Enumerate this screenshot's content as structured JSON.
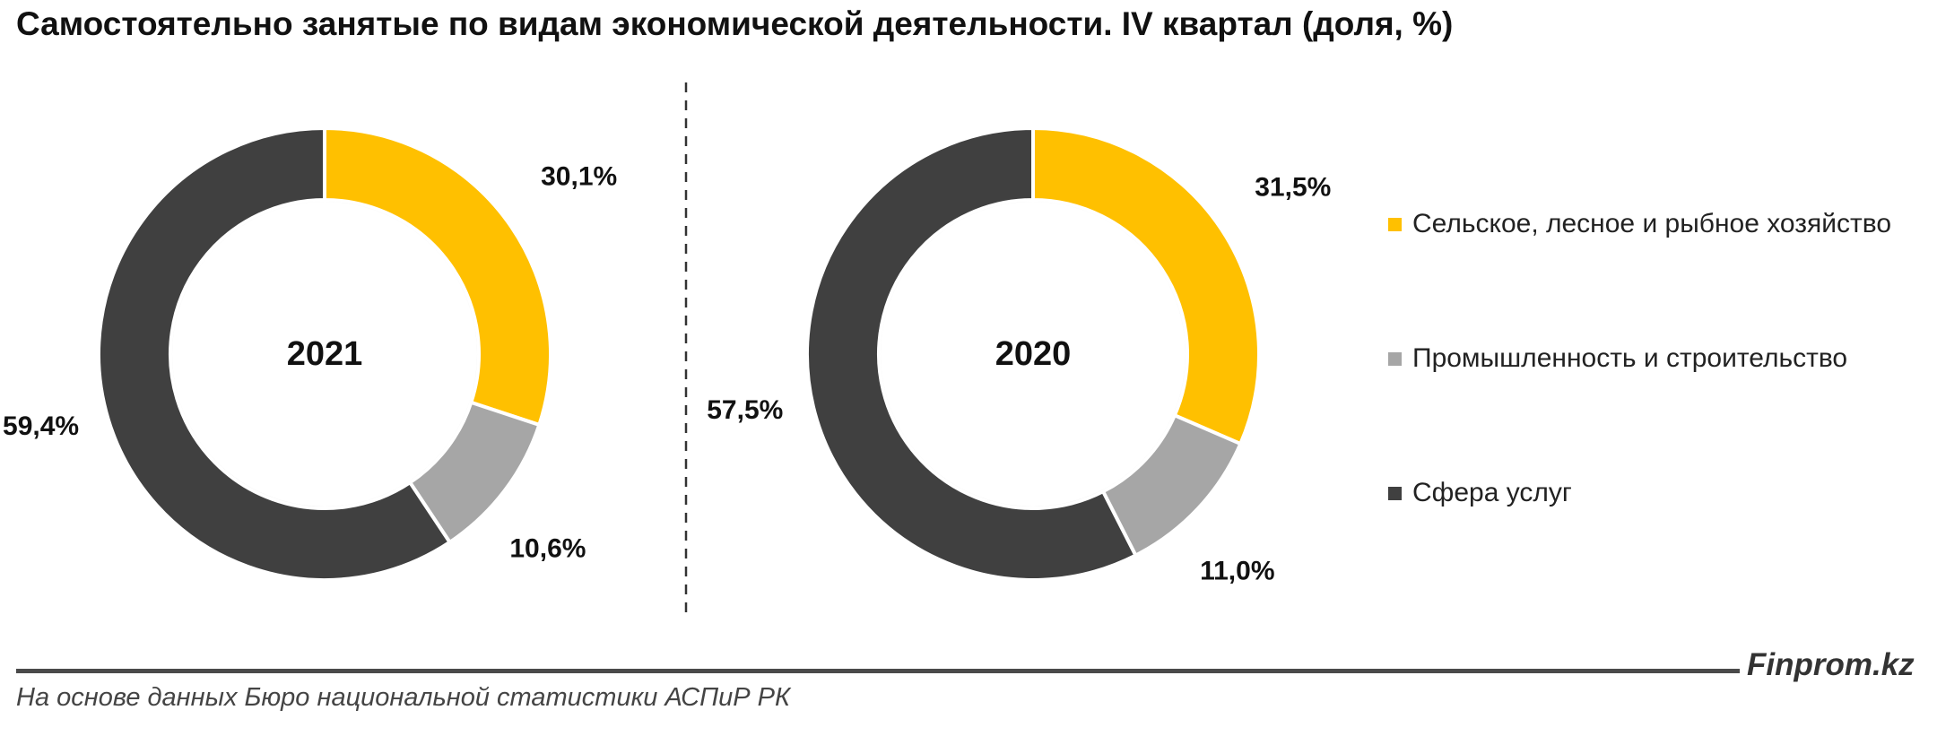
{
  "title": "Самостоятельно занятые по видам экономической деятельности. IV квартал (доля, %)",
  "chart_data": [
    {
      "type": "pie",
      "center_label": "2021",
      "categories": [
        "Сельское, лесное и рыбное хозяйство",
        "Промышленность и строительство",
        "Сфера услуг"
      ],
      "values": [
        30.1,
        10.6,
        59.4
      ],
      "labels": [
        "30,1%",
        "10,6%",
        "59,4%"
      ],
      "colors": [
        "#FFC000",
        "#A6A6A6",
        "#404040"
      ]
    },
    {
      "type": "pie",
      "center_label": "2020",
      "categories": [
        "Сельское, лесное и рыбное хозяйство",
        "Промышленность и строительство",
        "Сфера услуг"
      ],
      "values": [
        31.5,
        11.0,
        57.5
      ],
      "labels": [
        "31,5%",
        "11,0%",
        "57,5%"
      ],
      "colors": [
        "#FFC000",
        "#A6A6A6",
        "#404040"
      ]
    }
  ],
  "legend": {
    "items": [
      {
        "label": "Сельское, лесное и рыбное хозяйство",
        "color": "#FFC000"
      },
      {
        "label": "Промышленность и строительство",
        "color": "#A6A6A6"
      },
      {
        "label": "Сфера услуг",
        "color": "#404040"
      }
    ]
  },
  "brand": "Finprom.kz",
  "source": "На основе данных Бюро национальной статистики АСПиР РК"
}
